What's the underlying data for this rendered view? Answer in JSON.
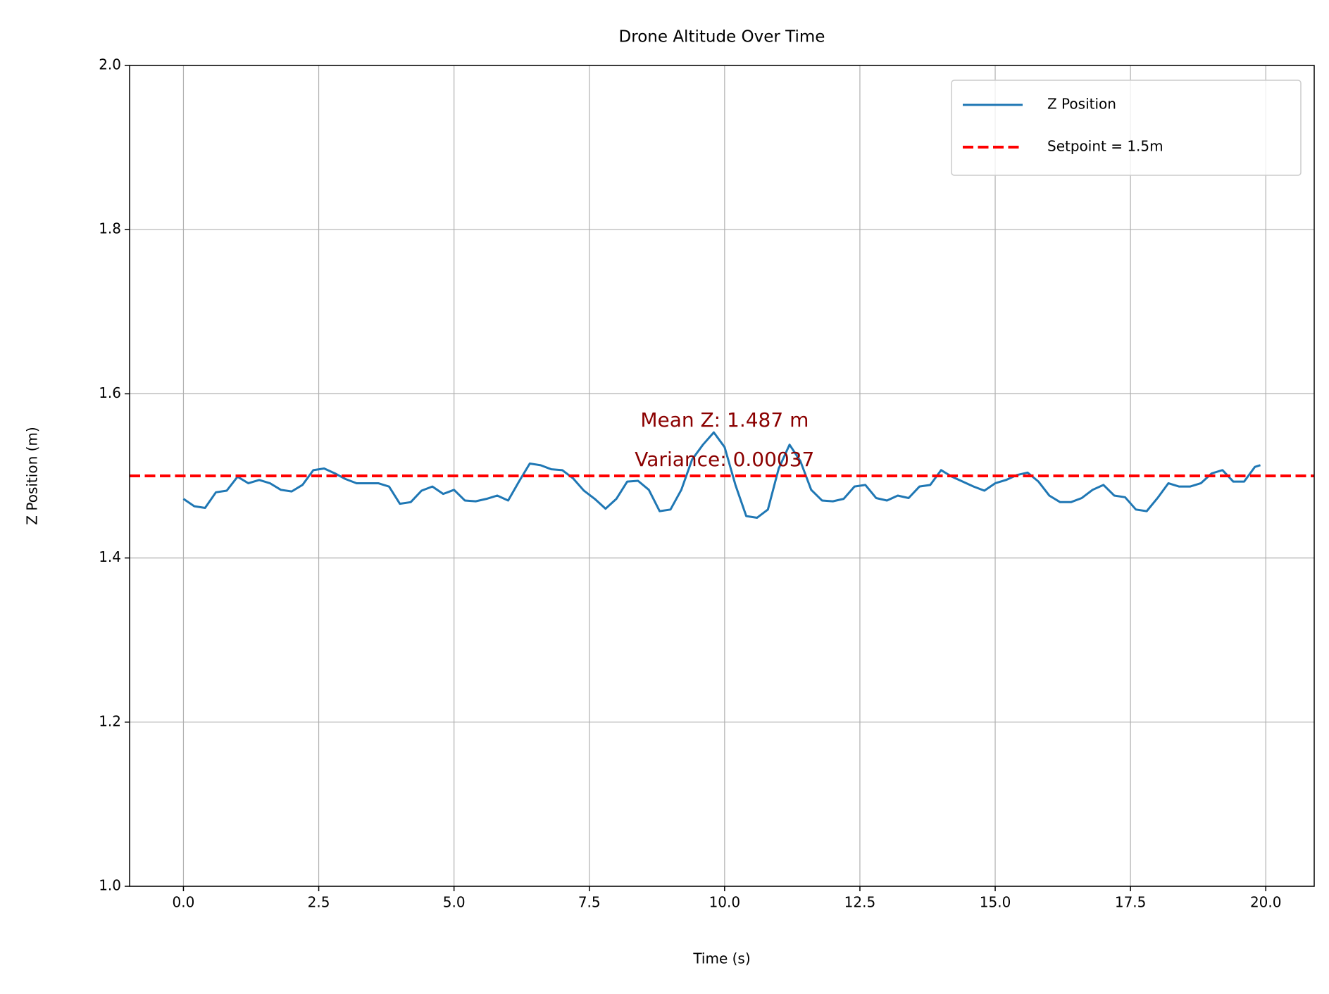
{
  "chart_data": {
    "type": "line",
    "title": "Drone Altitude Over Time",
    "xlabel": "Time (s)",
    "ylabel": "Z Position (m)",
    "x": [
      0,
      0.2,
      0.4,
      0.6,
      0.8,
      1.0,
      1.2,
      1.4,
      1.6,
      1.8,
      2.0,
      2.2,
      2.4,
      2.6,
      2.8,
      3.0,
      3.2,
      3.4,
      3.6,
      3.8,
      4.0,
      4.2,
      4.4,
      4.6,
      4.8,
      5.0,
      5.2,
      5.4,
      5.6,
      5.8,
      6.0,
      6.2,
      6.4,
      6.6,
      6.8,
      7.0,
      7.2,
      7.4,
      7.6,
      7.8,
      8.0,
      8.2,
      8.4,
      8.6,
      8.8,
      9.0,
      9.2,
      9.4,
      9.6,
      9.8,
      10.0,
      10.2,
      10.4,
      10.6,
      10.8,
      11.0,
      11.2,
      11.4,
      11.6,
      11.8,
      12.0,
      12.2,
      12.4,
      12.6,
      12.8,
      13.0,
      13.2,
      13.4,
      13.6,
      13.8,
      14.0,
      14.2,
      14.4,
      14.6,
      14.8,
      15.0,
      15.2,
      15.4,
      15.6,
      15.8,
      16.0,
      16.2,
      16.4,
      16.6,
      16.8,
      17.0,
      17.2,
      17.4,
      17.6,
      17.8,
      18.0,
      18.2,
      18.4,
      18.6,
      18.8,
      19.0,
      19.2,
      19.4,
      19.6,
      19.8,
      19.9
    ],
    "series": [
      {
        "name": "Z Position",
        "color": "#1f77b4",
        "values": [
          1.472,
          1.463,
          1.461,
          1.48,
          1.482,
          1.499,
          1.491,
          1.495,
          1.491,
          1.483,
          1.481,
          1.489,
          1.507,
          1.509,
          1.503,
          1.496,
          1.491,
          1.491,
          1.491,
          1.487,
          1.466,
          1.468,
          1.482,
          1.487,
          1.478,
          1.483,
          1.47,
          1.469,
          1.472,
          1.476,
          1.47,
          1.493,
          1.515,
          1.513,
          1.508,
          1.507,
          1.497,
          1.482,
          1.472,
          1.46,
          1.472,
          1.493,
          1.494,
          1.483,
          1.457,
          1.459,
          1.483,
          1.52,
          1.538,
          1.553,
          1.535,
          1.489,
          1.451,
          1.449,
          1.459,
          1.509,
          1.538,
          1.518,
          1.483,
          1.47,
          1.469,
          1.472,
          1.487,
          1.489,
          1.473,
          1.47,
          1.476,
          1.473,
          1.487,
          1.489,
          1.507,
          1.499,
          1.493,
          1.487,
          1.482,
          1.491,
          1.495,
          1.501,
          1.504,
          1.493,
          1.476,
          1.468,
          1.468,
          1.473,
          1.483,
          1.489,
          1.476,
          1.474,
          1.459,
          1.457,
          1.473,
          1.491,
          1.487,
          1.487,
          1.491,
          1.503,
          1.507,
          1.493,
          1.493,
          1.511,
          1.513
        ]
      }
    ],
    "hlines": [
      {
        "name": "Setpoint = 1.5m",
        "value": 1.5,
        "color": "#ff0000"
      }
    ],
    "annotations": [
      "Mean Z: 1.487 m",
      "Variance: 0.00037"
    ],
    "annotation_color": "#8b0000",
    "xlim": [
      -0.995,
      20.895
    ],
    "ylim": [
      1.0,
      2.0
    ],
    "xticks": [
      {
        "value": 0,
        "label": "0.0"
      },
      2.5,
      {
        "value": 5,
        "label": "5.0"
      },
      7.5,
      {
        "value": 10,
        "label": "10.0"
      },
      12.5,
      {
        "value": 15,
        "label": "15.0"
      },
      17.5,
      {
        "value": 20,
        "label": "20.0"
      }
    ],
    "yticks": [
      {
        "value": 1.0,
        "label": "1.0"
      },
      1.2,
      1.4,
      1.6,
      1.8,
      {
        "value": 2.0,
        "label": "2.0"
      }
    ],
    "grid": true,
    "legend": "upper right"
  }
}
